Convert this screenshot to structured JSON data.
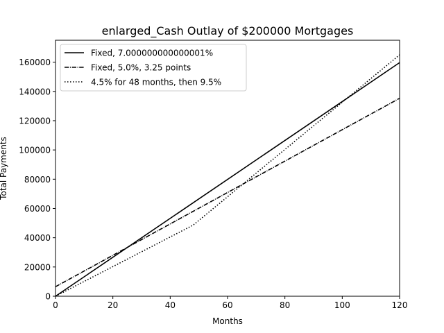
{
  "chart_data": {
    "type": "line",
    "title": "enlarged_Cash Outlay of $200000 Mortgages",
    "xlabel": "Months",
    "ylabel": "Total Payments",
    "xlim": [
      0,
      120
    ],
    "ylim": [
      0,
      175000
    ],
    "x_ticks": [
      0,
      20,
      40,
      60,
      80,
      100,
      120
    ],
    "y_ticks": [
      0,
      20000,
      40000,
      60000,
      80000,
      100000,
      120000,
      140000,
      160000
    ],
    "grid": false,
    "legend_position": "top-left",
    "series": [
      {
        "name": "Fixed, 7.000000000000001%",
        "style": "solid",
        "color": "#000000",
        "x": [
          0,
          120
        ],
        "y": [
          0,
          159700
        ]
      },
      {
        "name": "Fixed, 5.0%, 3.25 points",
        "style": "dashdot",
        "color": "#000000",
        "x": [
          0,
          120
        ],
        "y": [
          6500,
          135300
        ]
      },
      {
        "name": "4.5% for 48 months, then 9.5%",
        "style": "dotted",
        "color": "#000000",
        "x": [
          0,
          48,
          120
        ],
        "y": [
          0,
          48600,
          165000
        ]
      }
    ]
  }
}
